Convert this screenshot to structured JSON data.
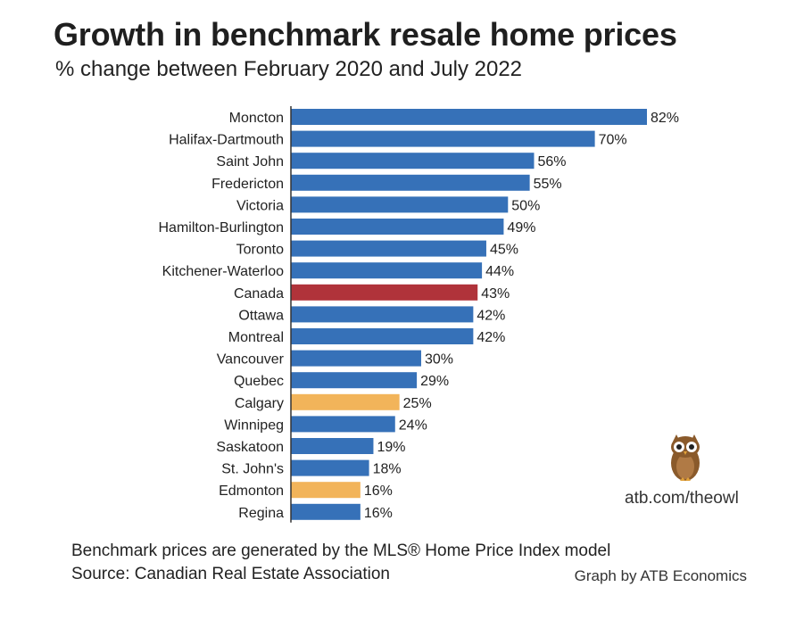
{
  "title": "Growth in benchmark resale home prices",
  "subtitle": "% change between February 2020 and July 2022",
  "footnote_model": "Benchmark prices are generated by the MLS® Home Price Index model",
  "footnote_source": "Source: Canadian Real Estate Association",
  "credit": "Graph by ATB Economics",
  "owl_link": "atb.com/theowl",
  "colors": {
    "default": "#3671B8",
    "canada": "#B0333A",
    "alberta": "#F2B45A"
  },
  "chart_data": {
    "type": "bar",
    "orientation": "horizontal",
    "title": "Growth in benchmark resale home prices",
    "subtitle": "% change between February 2020 and July 2022",
    "categories": [
      "Moncton",
      "Halifax-Dartmouth",
      "Saint John",
      "Fredericton",
      "Victoria",
      "Hamilton-Burlington",
      "Toronto",
      "Kitchener-Waterloo",
      "Canada",
      "Ottawa",
      "Montreal",
      "Vancouver",
      "Quebec",
      "Calgary",
      "Winnipeg",
      "Saskatoon",
      "St. John's",
      "Edmonton",
      "Regina"
    ],
    "values": [
      82,
      70,
      56,
      55,
      50,
      49,
      45,
      44,
      43,
      42,
      42,
      30,
      29,
      25,
      24,
      19,
      18,
      16,
      16
    ],
    "value_labels": [
      "82%",
      "70%",
      "56%",
      "55%",
      "50%",
      "49%",
      "45%",
      "44%",
      "43%",
      "42%",
      "42%",
      "30%",
      "29%",
      "25%",
      "24%",
      "19%",
      "18%",
      "16%",
      "16%"
    ],
    "bar_colors": [
      "default",
      "default",
      "default",
      "default",
      "default",
      "default",
      "default",
      "default",
      "canada",
      "default",
      "default",
      "default",
      "default",
      "alberta",
      "default",
      "default",
      "default",
      "alberta",
      "default"
    ],
    "xlim": [
      0,
      82
    ],
    "grid": false,
    "legend": "none"
  }
}
